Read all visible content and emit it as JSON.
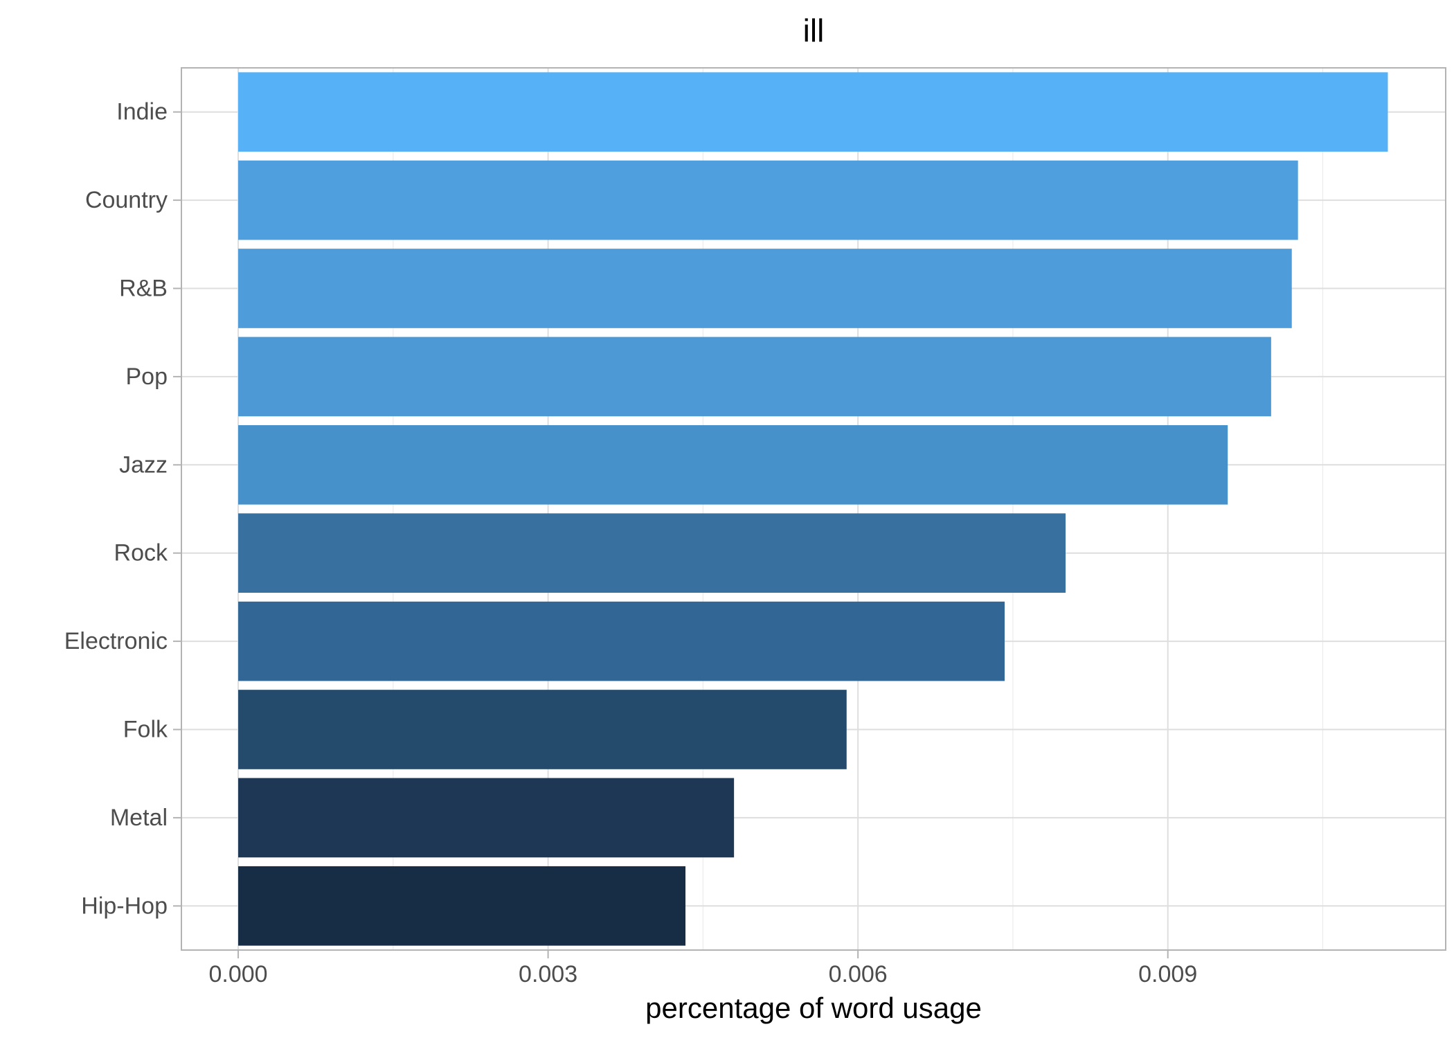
{
  "chart_data": {
    "type": "bar",
    "orientation": "horizontal",
    "title": "ill",
    "xlabel": "percentage of word usage",
    "ylabel": "",
    "categories": [
      "Indie",
      "Country",
      "R&B",
      "Pop",
      "Jazz",
      "Rock",
      "Electronic",
      "Folk",
      "Metal",
      "Hip-Hop"
    ],
    "values": [
      0.01113,
      0.01026,
      0.0102,
      0.01,
      0.00958,
      0.00801,
      0.00742,
      0.00589,
      0.0048,
      0.00433
    ],
    "colors": [
      "#56B1F7",
      "#4F9EDD",
      "#4E9CDA",
      "#4C99D6",
      "#4791CB",
      "#3871A0",
      "#326795",
      "#244A6C",
      "#1D3754",
      "#172D45"
    ],
    "xticks": [
      "0.000",
      "0.003",
      "0.006",
      "0.009"
    ],
    "xtick_values": [
      0,
      0.003,
      0.006,
      0.009
    ],
    "xlim": [
      -0.00055,
      0.01169
    ],
    "grid": true,
    "legend": "none"
  }
}
